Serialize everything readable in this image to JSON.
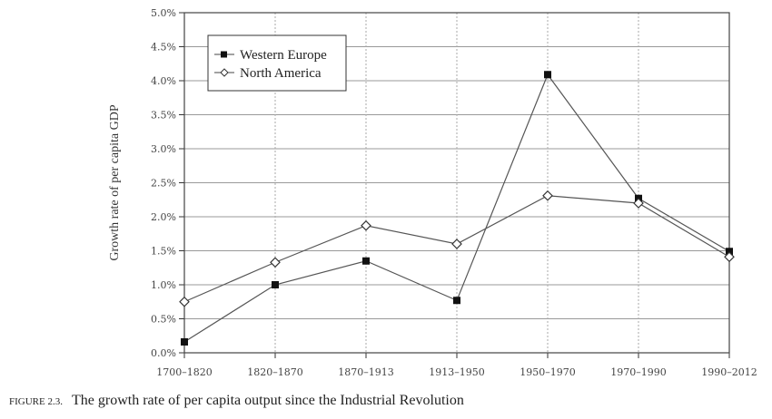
{
  "chart_data": {
    "type": "line",
    "title": "",
    "xlabel": "",
    "ylabel": "Growth rate of per capita GDP",
    "categories": [
      "1700–1820",
      "1820–1870",
      "1870–1913",
      "1913–1950",
      "1950–1970",
      "1970–1990",
      "1990–2012"
    ],
    "ylim": [
      0,
      5.0
    ],
    "yticks": [
      "0.0%",
      "0.5%",
      "1.0%",
      "1.5%",
      "2.0%",
      "2.5%",
      "3.0%",
      "3.5%",
      "4.0%",
      "4.5%",
      "5.0%"
    ],
    "grid": "on",
    "legend_position": "top-left",
    "series": [
      {
        "name": "Western Europe",
        "marker": "filled-square",
        "values": [
          0.16,
          1.0,
          1.35,
          0.77,
          4.09,
          2.27,
          1.49
        ]
      },
      {
        "name": "North America",
        "marker": "open-diamond",
        "values": [
          0.75,
          1.33,
          1.87,
          1.6,
          2.31,
          2.2,
          1.41
        ]
      }
    ]
  },
  "caption": {
    "label": "FIGURE 2.3.",
    "text": "The growth rate of per capita output since the Industrial Revolution"
  }
}
